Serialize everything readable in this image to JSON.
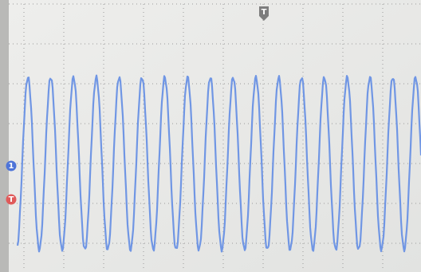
{
  "markers": {
    "trigger_position": "T",
    "channel": "1",
    "trigger_level": "T"
  }
}
